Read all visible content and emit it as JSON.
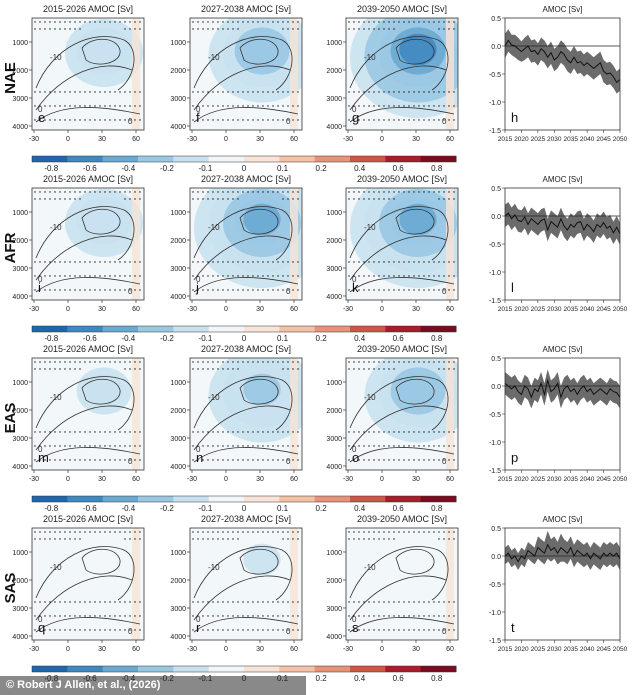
{
  "credit": "© Robert J Allen, et al., (2026)",
  "colorbar": {
    "ticks": [
      "-0.8",
      "-0.6",
      "-0.4",
      "-0.2",
      "-0.1",
      "0",
      "0.1",
      "0.2",
      "0.4",
      "0.6",
      "0.8"
    ],
    "colors": [
      "#2166ac",
      "#3f88c0",
      "#6aa9d2",
      "#9ac8e3",
      "#c9e1ef",
      "#f2f6f8",
      "#f8e4d7",
      "#f3c2a6",
      "#e6937a",
      "#cc5746",
      "#a81d2b",
      "#7a0c1f"
    ]
  },
  "panel_axes": {
    "x_ticks": [
      "-30",
      "0",
      "30",
      "60"
    ],
    "y_ticks": [
      "1000",
      "2000",
      "3000",
      "4000"
    ],
    "contour_labels": [
      "-10",
      "0",
      "10"
    ]
  },
  "timeseries_axes": {
    "title": "AMOC [Sv]",
    "x_ticks": [
      "2015",
      "2020",
      "2025",
      "2030",
      "2035",
      "2040",
      "2045",
      "2050"
    ],
    "y_ticks": [
      "0.5",
      "0.0",
      "-0.5",
      "-1.0",
      "-1.5"
    ],
    "ylim": [
      -1.5,
      0.5
    ]
  },
  "rows": [
    {
      "region": "NAE",
      "maps": [
        {
          "title": "2015-2026 AMOC [Sv]",
          "letter": "e",
          "anomaly_peak": -0.15
        },
        {
          "title": "2027-2038 AMOC [Sv]",
          "letter": "f",
          "anomaly_peak": -0.3
        },
        {
          "title": "2039-2050 AMOC [Sv]",
          "letter": "g",
          "anomaly_peak": -0.6
        }
      ],
      "ts_letter": "h"
    },
    {
      "region": "AFR",
      "maps": [
        {
          "title": "2015-2026 AMOC [Sv]",
          "letter": "i",
          "anomaly_peak": -0.2
        },
        {
          "title": "2027-2038 AMOC [Sv]",
          "letter": "j",
          "anomaly_peak": -0.45
        },
        {
          "title": "2039-2050 AMOC [Sv]",
          "letter": "k",
          "anomaly_peak": -0.45
        }
      ],
      "ts_letter": "l"
    },
    {
      "region": "EAS",
      "maps": [
        {
          "title": "2015-2026 AMOC [Sv]",
          "letter": "m",
          "anomaly_peak": -0.12
        },
        {
          "title": "2027-2038 AMOC [Sv]",
          "letter": "n",
          "anomaly_peak": -0.25
        },
        {
          "title": "2039-2050 AMOC [Sv]",
          "letter": "o",
          "anomaly_peak": -0.3
        }
      ],
      "ts_letter": "p"
    },
    {
      "region": "SAS",
      "maps": [
        {
          "title": "2015-2026 AMOC [Sv]",
          "letter": "q",
          "anomaly_peak": -0.08
        },
        {
          "title": "2027-2038 AMOC [Sv]",
          "letter": "r",
          "anomaly_peak": -0.1
        },
        {
          "title": "2039-2050 AMOC [Sv]",
          "letter": "s",
          "anomaly_peak": -0.08
        }
      ],
      "ts_letter": "t"
    }
  ],
  "chart_data": [
    {
      "type": "line",
      "title": "AMOC [Sv]",
      "panel": "h",
      "x": [
        2015,
        2016,
        2017,
        2018,
        2019,
        2020,
        2021,
        2022,
        2023,
        2024,
        2025,
        2026,
        2027,
        2028,
        2029,
        2030,
        2031,
        2032,
        2033,
        2034,
        2035,
        2036,
        2037,
        2038,
        2039,
        2040,
        2041,
        2042,
        2043,
        2044,
        2045,
        2046,
        2047,
        2048,
        2049,
        2050
      ],
      "series": [
        {
          "values": [
            0.0,
            0.1,
            0.02,
            0.0,
            -0.05,
            -0.1,
            -0.05,
            0.0,
            -0.1,
            -0.08,
            -0.15,
            -0.05,
            -0.1,
            -0.2,
            -0.12,
            -0.25,
            -0.2,
            -0.1,
            -0.15,
            -0.25,
            -0.3,
            -0.2,
            -0.3,
            -0.28,
            -0.35,
            -0.3,
            -0.35,
            -0.4,
            -0.35,
            -0.3,
            -0.45,
            -0.5,
            -0.48,
            -0.55,
            -0.65,
            -0.6
          ]
        },
        {
          "values": [
            0.22,
            0.3,
            0.2,
            0.2,
            0.15,
            0.08,
            0.15,
            0.2,
            0.1,
            0.12,
            0.05,
            0.15,
            0.1,
            0.0,
            0.08,
            -0.05,
            0.0,
            0.1,
            0.05,
            -0.05,
            -0.1,
            0.0,
            -0.1,
            -0.08,
            -0.15,
            -0.1,
            -0.15,
            -0.2,
            -0.15,
            -0.1,
            -0.25,
            -0.3,
            -0.28,
            -0.35,
            -0.45,
            -0.4
          ]
        },
        {
          "values": [
            -0.22,
            -0.1,
            -0.16,
            -0.2,
            -0.25,
            -0.28,
            -0.25,
            -0.2,
            -0.3,
            -0.28,
            -0.35,
            -0.25,
            -0.3,
            -0.4,
            -0.32,
            -0.45,
            -0.4,
            -0.3,
            -0.35,
            -0.45,
            -0.5,
            -0.4,
            -0.5,
            -0.48,
            -0.55,
            -0.5,
            -0.55,
            -0.6,
            -0.55,
            -0.5,
            -0.65,
            -0.7,
            -0.68,
            -0.75,
            -0.85,
            -0.8
          ]
        }
      ],
      "xlim": [
        2015,
        2050
      ],
      "ylim": [
        -1.5,
        0.5
      ],
      "ylabel": ""
    },
    {
      "type": "line",
      "title": "AMOC [Sv]",
      "panel": "l",
      "x": [
        2015,
        2016,
        2017,
        2018,
        2019,
        2020,
        2021,
        2022,
        2023,
        2024,
        2025,
        2026,
        2027,
        2028,
        2029,
        2030,
        2031,
        2032,
        2033,
        2034,
        2035,
        2036,
        2037,
        2038,
        2039,
        2040,
        2041,
        2042,
        2043,
        2044,
        2045,
        2046,
        2047,
        2048,
        2049,
        2050
      ],
      "series": [
        {
          "values": [
            0.0,
            0.05,
            -0.05,
            0.02,
            -0.08,
            -0.1,
            -0.02,
            -0.15,
            -0.05,
            -0.1,
            -0.15,
            -0.08,
            -0.05,
            -0.25,
            -0.1,
            -0.15,
            -0.2,
            -0.05,
            -0.18,
            -0.25,
            -0.15,
            -0.2,
            -0.12,
            -0.1,
            -0.25,
            -0.15,
            -0.2,
            -0.28,
            -0.15,
            -0.2,
            -0.12,
            -0.22,
            -0.18,
            -0.3,
            -0.2,
            -0.32
          ]
        },
        {
          "values": [
            0.2,
            0.25,
            0.15,
            0.22,
            0.12,
            0.1,
            0.18,
            0.05,
            0.15,
            0.1,
            0.05,
            0.12,
            0.15,
            -0.05,
            0.1,
            0.05,
            0.0,
            0.15,
            0.02,
            -0.05,
            0.05,
            0.0,
            0.08,
            0.1,
            -0.05,
            0.05,
            0.0,
            -0.08,
            0.05,
            0.0,
            0.08,
            -0.02,
            0.02,
            -0.1,
            0.0,
            -0.12
          ]
        },
        {
          "values": [
            -0.2,
            -0.15,
            -0.25,
            -0.18,
            -0.28,
            -0.3,
            -0.22,
            -0.35,
            -0.25,
            -0.3,
            -0.35,
            -0.28,
            -0.25,
            -0.45,
            -0.3,
            -0.35,
            -0.4,
            -0.25,
            -0.38,
            -0.45,
            -0.35,
            -0.4,
            -0.32,
            -0.3,
            -0.45,
            -0.35,
            -0.4,
            -0.48,
            -0.35,
            -0.4,
            -0.32,
            -0.42,
            -0.38,
            -0.5,
            -0.4,
            -0.52
          ]
        }
      ],
      "xlim": [
        2015,
        2050
      ],
      "ylim": [
        -1.5,
        0.5
      ],
      "ylabel": ""
    },
    {
      "type": "line",
      "title": "AMOC [Sv]",
      "panel": "p",
      "x": [
        2015,
        2016,
        2017,
        2018,
        2019,
        2020,
        2021,
        2022,
        2023,
        2024,
        2025,
        2026,
        2027,
        2028,
        2029,
        2030,
        2031,
        2032,
        2033,
        2034,
        2035,
        2036,
        2037,
        2038,
        2039,
        2040,
        2041,
        2042,
        2043,
        2044,
        2045,
        2046,
        2047,
        2048,
        2049,
        2050
      ],
      "series": [
        {
          "values": [
            0.05,
            0.0,
            -0.05,
            0.0,
            -0.1,
            -0.15,
            0.0,
            -0.05,
            -0.2,
            -0.05,
            -0.1,
            0.05,
            -0.15,
            0.1,
            -0.1,
            -0.05,
            0.05,
            -0.2,
            -0.05,
            0.0,
            -0.1,
            -0.05,
            -0.15,
            -0.05,
            0.0,
            -0.1,
            -0.05,
            -0.15,
            -0.1,
            -0.05,
            -0.1,
            -0.15,
            -0.05,
            -0.1,
            -0.12,
            -0.2
          ]
        },
        {
          "values": [
            0.25,
            0.2,
            0.15,
            0.2,
            0.1,
            0.05,
            0.2,
            0.15,
            0.0,
            0.15,
            0.1,
            0.25,
            0.05,
            0.3,
            0.1,
            0.15,
            0.25,
            0.0,
            0.15,
            0.2,
            0.1,
            0.15,
            0.05,
            0.15,
            0.2,
            0.1,
            0.15,
            0.05,
            0.1,
            0.15,
            0.1,
            0.05,
            0.15,
            0.1,
            0.08,
            0.0
          ]
        },
        {
          "values": [
            -0.15,
            -0.2,
            -0.25,
            -0.2,
            -0.3,
            -0.35,
            -0.2,
            -0.25,
            -0.4,
            -0.25,
            -0.3,
            -0.15,
            -0.35,
            -0.1,
            -0.3,
            -0.25,
            -0.15,
            -0.4,
            -0.25,
            -0.2,
            -0.3,
            -0.25,
            -0.35,
            -0.25,
            -0.2,
            -0.3,
            -0.25,
            -0.35,
            -0.3,
            -0.25,
            -0.3,
            -0.35,
            -0.25,
            -0.3,
            -0.32,
            -0.4
          ]
        }
      ],
      "xlim": [
        2015,
        2050
      ],
      "ylim": [
        -1.5,
        0.5
      ],
      "ylabel": ""
    },
    {
      "type": "line",
      "title": "AMOC [Sv]",
      "panel": "t",
      "x": [
        2015,
        2016,
        2017,
        2018,
        2019,
        2020,
        2021,
        2022,
        2023,
        2024,
        2025,
        2026,
        2027,
        2028,
        2029,
        2030,
        2031,
        2032,
        2033,
        2034,
        2035,
        2036,
        2037,
        2038,
        2039,
        2040,
        2041,
        2042,
        2043,
        2044,
        2045,
        2046,
        2047,
        2048,
        2049,
        2050
      ],
      "series": [
        {
          "values": [
            0.0,
            0.05,
            -0.05,
            0.0,
            -0.1,
            0.0,
            -0.05,
            0.1,
            0.05,
            0.0,
            0.15,
            0.1,
            0.05,
            0.2,
            0.1,
            0.15,
            0.05,
            0.15,
            0.1,
            0.05,
            0.15,
            0.0,
            0.1,
            0.05,
            0.0,
            0.05,
            -0.05,
            0.05,
            0.0,
            -0.05,
            0.05,
            0.0,
            0.05,
            0.0,
            0.05,
            -0.05
          ]
        },
        {
          "values": [
            0.15,
            0.2,
            0.1,
            0.15,
            0.05,
            0.15,
            0.1,
            0.25,
            0.2,
            0.15,
            0.35,
            0.3,
            0.25,
            0.45,
            0.3,
            0.35,
            0.25,
            0.4,
            0.3,
            0.25,
            0.35,
            0.2,
            0.3,
            0.25,
            0.2,
            0.25,
            0.15,
            0.25,
            0.2,
            0.15,
            0.25,
            0.2,
            0.25,
            0.2,
            0.25,
            0.15
          ]
        },
        {
          "values": [
            -0.15,
            -0.1,
            -0.2,
            -0.15,
            -0.25,
            -0.15,
            -0.2,
            -0.05,
            -0.1,
            -0.15,
            -0.05,
            -0.1,
            -0.15,
            -0.05,
            -0.1,
            -0.05,
            -0.15,
            -0.1,
            -0.1,
            -0.15,
            -0.05,
            -0.2,
            -0.1,
            -0.15,
            -0.2,
            -0.15,
            -0.25,
            -0.15,
            -0.2,
            -0.25,
            -0.15,
            -0.2,
            -0.15,
            -0.2,
            -0.15,
            -0.25
          ]
        }
      ],
      "xlim": [
        2015,
        2050
      ],
      "ylim": [
        -1.5,
        0.5
      ],
      "ylabel": ""
    }
  ]
}
